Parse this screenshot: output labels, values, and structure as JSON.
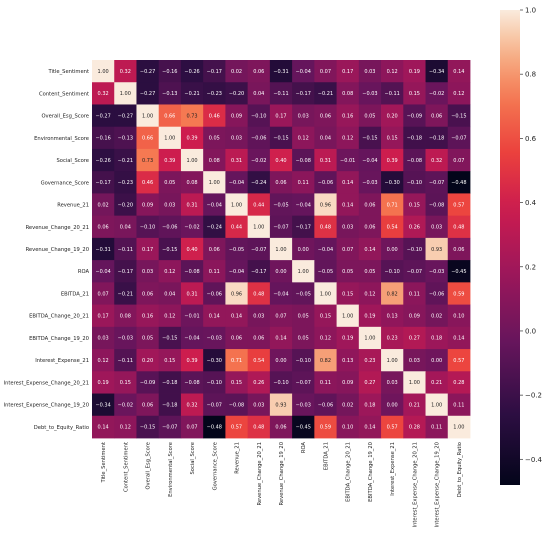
{
  "chart_data": {
    "type": "heatmap",
    "labels": [
      "Title_Sentiment",
      "Content_Sentiment",
      "Overall_Esg_Score",
      "Environmental_Score",
      "Social_Score",
      "Governance_Score",
      "Revenue_21",
      "Revenue_Change_20_21",
      "Revenue_Change_19_20",
      "ROA",
      "EBITDA_21",
      "EBITDA_Change_20_21",
      "EBITDA_Change_19_20",
      "Interest_Expense_21",
      "Interest_Expense_Change_20_21",
      "Interest_Expense_Change_19_20",
      "Debt_to_Equity_Ratio"
    ],
    "matrix": [
      [
        1.0,
        0.32,
        -0.27,
        -0.16,
        -0.26,
        -0.17,
        0.02,
        0.06,
        -0.31,
        -0.04,
        0.07,
        0.17,
        0.03,
        0.12,
        0.19,
        -0.34,
        0.14
      ],
      [
        0.32,
        1.0,
        -0.27,
        -0.13,
        -0.21,
        -0.23,
        -0.2,
        0.04,
        -0.11,
        -0.17,
        -0.21,
        0.08,
        -0.03,
        -0.11,
        0.15,
        -0.02,
        0.12
      ],
      [
        -0.27,
        -0.27,
        1.0,
        0.66,
        0.73,
        0.46,
        0.09,
        -0.1,
        0.17,
        0.03,
        0.06,
        0.16,
        0.05,
        0.2,
        -0.09,
        0.06,
        -0.15
      ],
      [
        -0.16,
        -0.13,
        0.66,
        1.0,
        0.39,
        0.05,
        0.03,
        -0.06,
        -0.15,
        0.12,
        0.04,
        0.12,
        -0.15,
        0.15,
        -0.18,
        -0.18,
        -0.07
      ],
      [
        -0.26,
        -0.21,
        0.73,
        0.39,
        1.0,
        0.08,
        0.31,
        -0.02,
        0.4,
        -0.08,
        0.31,
        -0.01,
        -0.04,
        0.39,
        -0.08,
        0.32,
        0.07
      ],
      [
        -0.17,
        -0.23,
        0.46,
        0.05,
        0.08,
        1.0,
        -0.04,
        -0.24,
        0.06,
        0.11,
        -0.06,
        0.14,
        -0.03,
        -0.3,
        -0.1,
        -0.07,
        -0.48
      ],
      [
        0.02,
        -0.2,
        0.09,
        0.03,
        0.31,
        -0.04,
        1.0,
        0.44,
        -0.05,
        -0.04,
        0.96,
        0.14,
        0.06,
        0.71,
        0.15,
        -0.08,
        0.57
      ],
      [
        0.06,
        0.04,
        -0.1,
        -0.06,
        -0.02,
        -0.24,
        0.44,
        1.0,
        -0.07,
        -0.17,
        0.48,
        0.03,
        0.06,
        0.54,
        0.26,
        0.03,
        0.48
      ],
      [
        -0.31,
        -0.11,
        0.17,
        -0.15,
        0.4,
        0.06,
        -0.05,
        -0.07,
        1.0,
        0.0,
        -0.04,
        0.07,
        0.14,
        0.0,
        -0.1,
        0.93,
        0.06
      ],
      [
        -0.04,
        -0.17,
        0.03,
        0.12,
        -0.08,
        0.11,
        -0.04,
        -0.17,
        0.0,
        1.0,
        -0.05,
        0.05,
        0.05,
        -0.1,
        -0.07,
        -0.03,
        -0.45
      ],
      [
        0.07,
        -0.21,
        0.06,
        0.04,
        0.31,
        -0.06,
        0.96,
        0.48,
        -0.04,
        -0.05,
        1.0,
        0.15,
        0.12,
        0.82,
        0.11,
        -0.06,
        0.59
      ],
      [
        0.17,
        0.08,
        0.16,
        0.12,
        -0.01,
        0.14,
        0.14,
        0.03,
        0.07,
        0.05,
        0.15,
        1.0,
        0.19,
        0.13,
        0.09,
        0.02,
        0.1
      ],
      [
        0.03,
        -0.03,
        0.05,
        -0.15,
        -0.04,
        -0.03,
        0.06,
        0.06,
        0.14,
        0.05,
        0.12,
        0.19,
        1.0,
        0.23,
        0.27,
        0.18,
        0.14
      ],
      [
        0.12,
        -0.11,
        0.2,
        0.15,
        0.39,
        -0.3,
        0.71,
        0.54,
        0.0,
        -0.1,
        0.82,
        0.13,
        0.23,
        1.0,
        0.03,
        0.0,
        0.57
      ],
      [
        0.19,
        0.15,
        -0.09,
        -0.18,
        -0.08,
        -0.1,
        0.15,
        0.26,
        -0.1,
        -0.07,
        0.11,
        0.09,
        0.27,
        0.03,
        1.0,
        0.21,
        0.28
      ],
      [
        -0.34,
        -0.02,
        0.06,
        -0.18,
        0.32,
        -0.07,
        -0.08,
        0.03,
        0.93,
        -0.03,
        -0.06,
        0.02,
        0.18,
        0.0,
        0.21,
        1.0,
        0.11
      ],
      [
        0.14,
        0.12,
        -0.15,
        -0.07,
        0.07,
        -0.48,
        0.57,
        0.48,
        0.06,
        -0.45,
        0.59,
        0.1,
        0.14,
        0.57,
        0.28,
        0.11,
        1.0
      ]
    ],
    "vmin": -0.48,
    "vmax": 1.0,
    "colormap": "rocket",
    "colorbar_ticks": [
      1.0,
      0.8,
      0.6,
      0.4,
      0.2,
      0.0,
      -0.2,
      -0.4
    ],
    "colorbar_tick_labels": [
      "1.0",
      "0.8",
      "0.6",
      "0.4",
      "0.2",
      "0.0",
      "−0.2",
      "−0.4"
    ],
    "title": "",
    "xlabel": "",
    "ylabel": ""
  }
}
